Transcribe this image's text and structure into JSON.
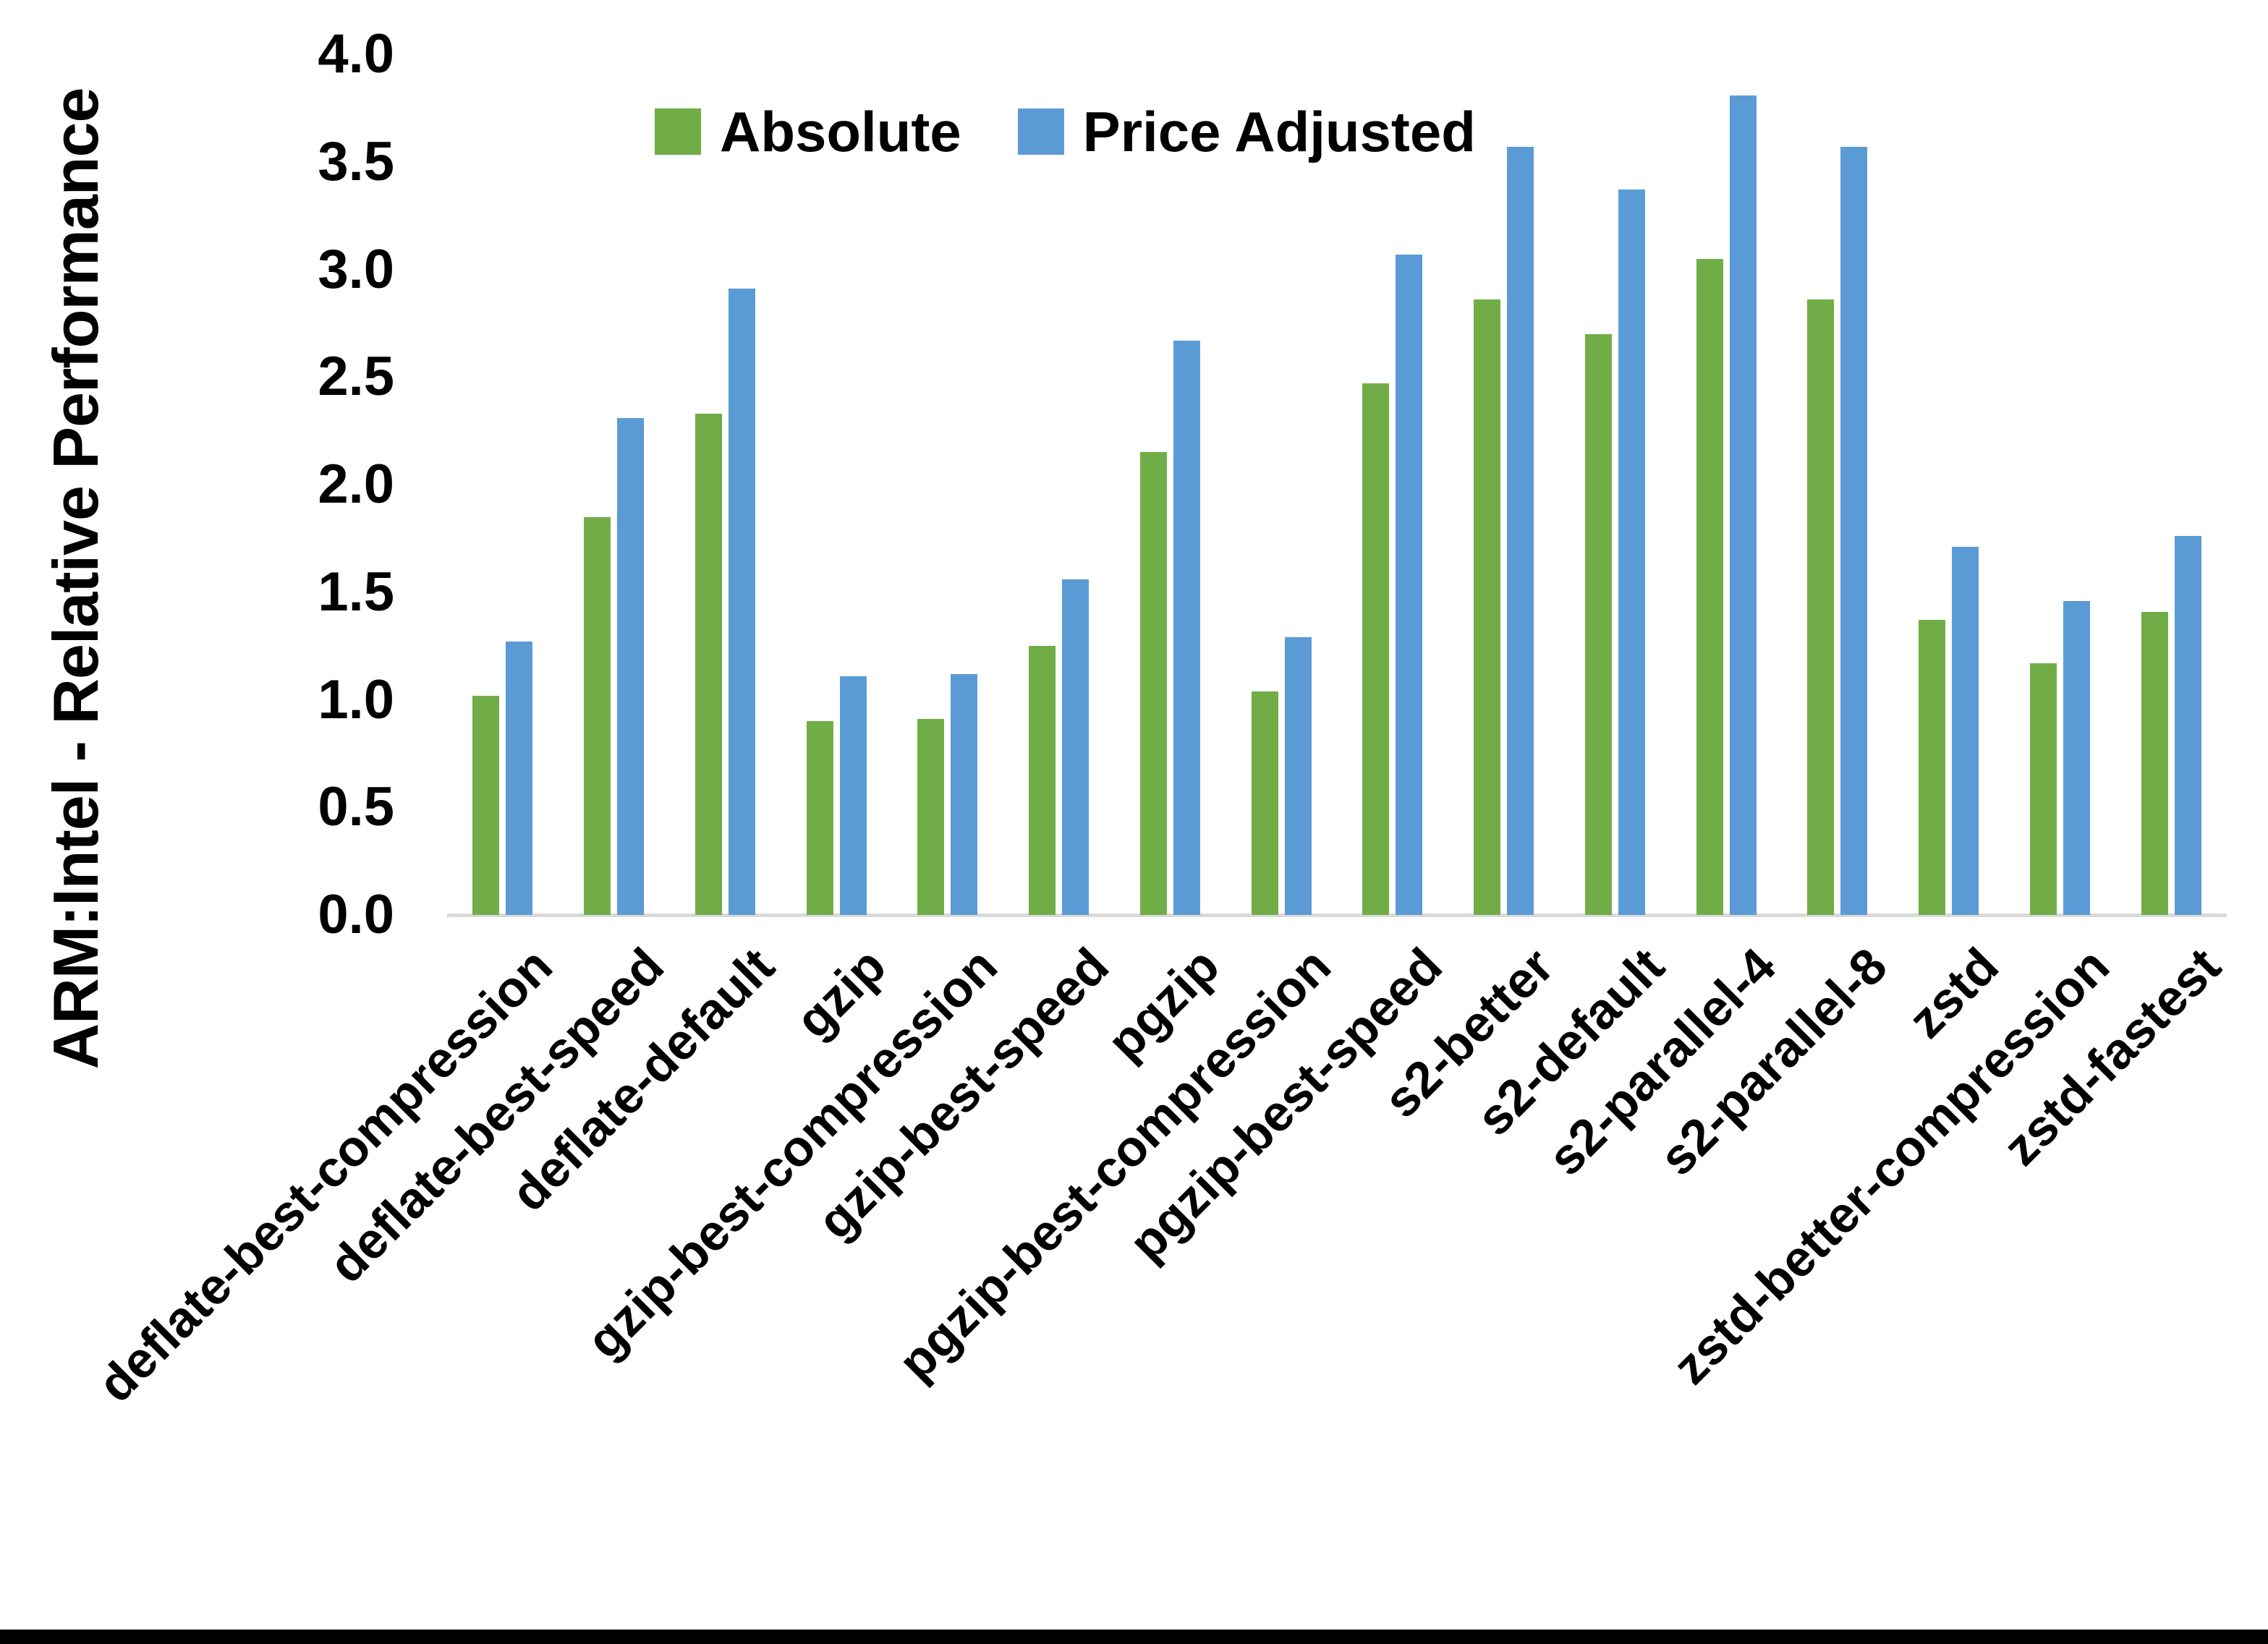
{
  "chart_data": {
    "type": "bar",
    "title": "",
    "xlabel": "",
    "ylabel": "ARM:Intel - Relative Performance",
    "ylim": [
      0.0,
      4.0
    ],
    "ytick_step": 0.5,
    "y_tick_labels": [
      "0.0",
      "0.5",
      "1.0",
      "1.5",
      "2.0",
      "2.5",
      "3.0",
      "3.5",
      "4.0"
    ],
    "grid": false,
    "legend_position": "top-center",
    "axis_line_color": "#D9D9D9",
    "text_color": "#000000",
    "background_color": "#FFFFFF",
    "bottom_border_color": "#000000",
    "categories": [
      "deflate-best-compression",
      "deflate-best-speed",
      "deflate-default",
      "gzip",
      "gzip-best-compression",
      "gzip-best-speed",
      "pgzip",
      "pgzip-best-compression",
      "pgzip-best-speed",
      "s2-better",
      "s2-default",
      "s2-parallel-4",
      "s2-parallel-8",
      "zstd",
      "zstd-better-compression",
      "zstd-fastest"
    ],
    "series": [
      {
        "name": "Absolute",
        "color": "#70AD47",
        "values": [
          1.02,
          1.85,
          2.33,
          0.9,
          0.91,
          1.25,
          2.15,
          1.04,
          2.47,
          2.86,
          2.7,
          3.05,
          2.86,
          1.37,
          1.17,
          1.41
        ]
      },
      {
        "name": "Price Adjusted",
        "color": "#5B9BD5",
        "values": [
          1.27,
          2.31,
          2.91,
          1.11,
          1.12,
          1.56,
          2.67,
          1.29,
          3.07,
          3.57,
          3.37,
          3.81,
          3.57,
          1.71,
          1.46,
          1.76
        ]
      }
    ]
  }
}
